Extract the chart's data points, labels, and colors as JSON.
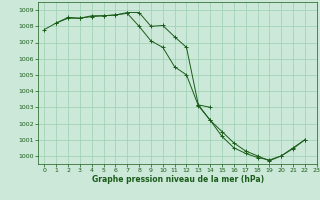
{
  "background_color": "#cce8d8",
  "grid_color": "#9ecfb3",
  "line_color": "#1a5c1a",
  "xlabel": "Graphe pression niveau de la mer (hPa)",
  "ylim": [
    999.5,
    1009.5
  ],
  "xlim": [
    -0.5,
    23
  ],
  "yticks": [
    1000,
    1001,
    1002,
    1003,
    1004,
    1005,
    1006,
    1007,
    1008,
    1009
  ],
  "xticks": [
    0,
    1,
    2,
    3,
    4,
    5,
    6,
    7,
    8,
    9,
    10,
    11,
    12,
    13,
    14,
    15,
    16,
    17,
    18,
    19,
    20,
    21,
    22,
    23
  ],
  "series": [
    [
      1007.8,
      1008.2,
      1008.5,
      1008.5,
      1008.6,
      1008.65,
      1008.7,
      1008.8,
      1008.0,
      1007.1,
      1006.7,
      1005.5,
      1005.0,
      1003.1,
      1002.2,
      1001.5,
      1000.8,
      1000.3,
      1000.0,
      999.7,
      1000.0,
      1000.5,
      1001.0,
      null
    ],
    [
      null,
      1008.2,
      1008.55,
      1008.5,
      1008.65,
      1008.65,
      1008.7,
      1008.85,
      1008.85,
      1008.0,
      1008.05,
      1007.35,
      1006.7,
      1003.15,
      1003.0,
      null,
      null,
      null,
      null,
      null,
      null,
      null,
      null,
      null
    ],
    [
      null,
      null,
      null,
      null,
      null,
      null,
      null,
      null,
      null,
      null,
      null,
      null,
      null,
      1003.15,
      1002.2,
      1001.2,
      1000.5,
      1000.15,
      999.9,
      999.75,
      1000.0,
      1000.45,
      1001.0,
      null
    ]
  ]
}
